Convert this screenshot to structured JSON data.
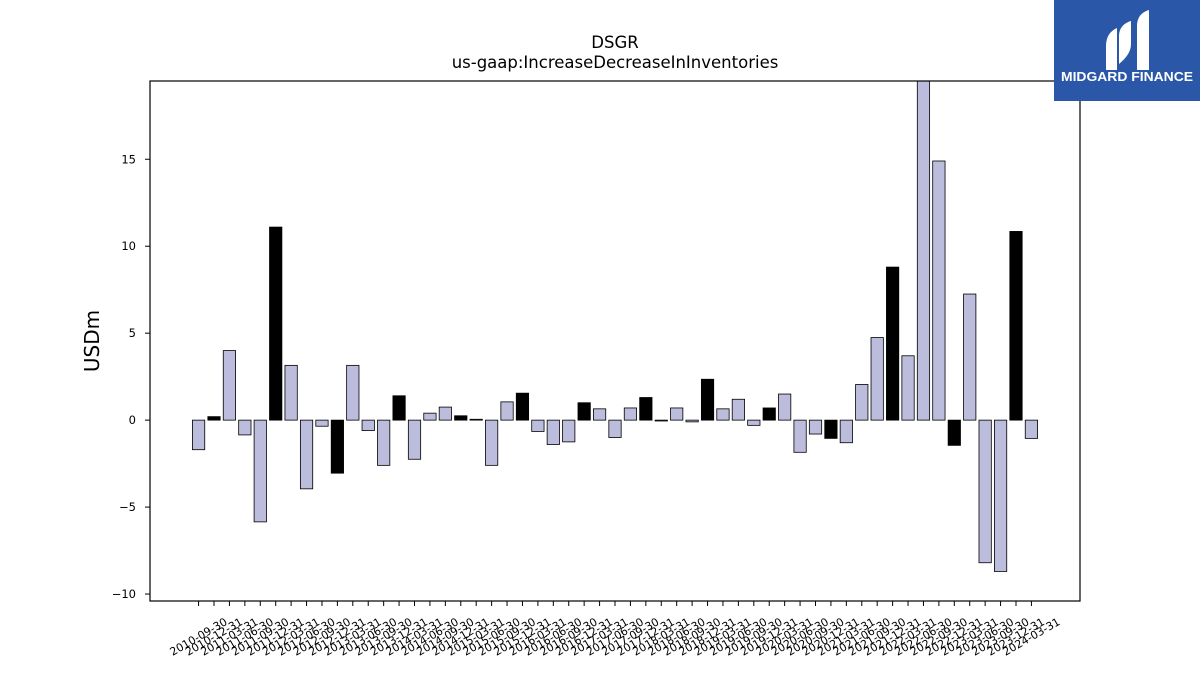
{
  "logo": {
    "text": "MIDGARD FINANCE",
    "background": "#2b57a8",
    "foreground": "#ffffff"
  },
  "chart_data": {
    "type": "bar",
    "title": "DSGR",
    "subtitle": "us-gaap:IncreaseDecreaseInInventories",
    "xlabel": "",
    "ylabel": "USDm",
    "ylim": [
      -10.4,
      19.5
    ],
    "yticks": [
      -10,
      -5,
      0,
      5,
      10,
      15
    ],
    "ytick_labels": [
      "−10",
      "−5",
      "0",
      "5",
      "10",
      "15"
    ],
    "grid": false,
    "categories": [
      "2010-09-30",
      "2010-12-31",
      "2011-03-31",
      "2011-06-30",
      "2011-09-30",
      "2011-12-31",
      "2012-03-31",
      "2012-06-30",
      "2012-09-30",
      "2012-12-31",
      "2013-03-31",
      "2013-06-30",
      "2013-09-30",
      "2013-12-31",
      "2014-03-31",
      "2014-06-30",
      "2014-09-30",
      "2014-12-31",
      "2015-03-31",
      "2015-06-30",
      "2015-09-30",
      "2015-12-31",
      "2016-03-31",
      "2016-06-30",
      "2016-09-30",
      "2016-12-31",
      "2017-03-31",
      "2017-06-30",
      "2017-09-30",
      "2017-12-31",
      "2018-03-31",
      "2018-06-30",
      "2018-09-30",
      "2018-12-31",
      "2019-03-31",
      "2019-06-30",
      "2019-09-30",
      "2019-12-31",
      "2020-03-31",
      "2020-06-30",
      "2020-09-30",
      "2020-12-31",
      "2021-03-31",
      "2021-06-30",
      "2021-09-30",
      "2021-12-31",
      "2022-03-31",
      "2022-06-30",
      "2022-09-30",
      "2022-12-31",
      "2023-03-31",
      "2023-06-30",
      "2023-09-30",
      "2023-12-31",
      "2024-03-31"
    ],
    "values": [
      -1.7,
      0.2,
      4.0,
      -0.85,
      -5.85,
      11.1,
      3.15,
      -3.95,
      -0.35,
      -3.05,
      3.15,
      -0.6,
      -2.6,
      1.4,
      -2.25,
      0.4,
      0.75,
      0.25,
      0.05,
      -2.6,
      1.05,
      1.55,
      -0.65,
      -1.4,
      -1.25,
      1.0,
      0.65,
      -1.0,
      0.7,
      1.3,
      -0.05,
      0.7,
      -0.1,
      2.35,
      0.65,
      1.2,
      -0.3,
      0.7,
      1.5,
      -1.85,
      -0.8,
      -1.05,
      -1.3,
      2.05,
      4.75,
      8.8,
      3.7,
      19.5,
      14.9,
      -1.45,
      7.25,
      -8.2,
      -8.7,
      10.85,
      -1.05
    ],
    "colors": [
      "#bcbddc",
      "#000000",
      "#bcbddc",
      "#bcbddc",
      "#bcbddc",
      "#000000",
      "#bcbddc",
      "#bcbddc",
      "#bcbddc",
      "#000000",
      "#bcbddc",
      "#bcbddc",
      "#bcbddc",
      "#000000",
      "#bcbddc",
      "#bcbddc",
      "#bcbddc",
      "#000000",
      "#bcbddc",
      "#bcbddc",
      "#bcbddc",
      "#000000",
      "#bcbddc",
      "#bcbddc",
      "#bcbddc",
      "#000000",
      "#bcbddc",
      "#bcbddc",
      "#bcbddc",
      "#000000",
      "#bcbddc",
      "#bcbddc",
      "#bcbddc",
      "#000000",
      "#bcbddc",
      "#bcbddc",
      "#bcbddc",
      "#000000",
      "#bcbddc",
      "#bcbddc",
      "#bcbddc",
      "#000000",
      "#bcbddc",
      "#bcbddc",
      "#bcbddc",
      "#000000",
      "#bcbddc",
      "#bcbddc",
      "#bcbddc",
      "#000000",
      "#bcbddc",
      "#bcbddc",
      "#bcbddc",
      "#000000",
      "#bcbddc"
    ]
  }
}
